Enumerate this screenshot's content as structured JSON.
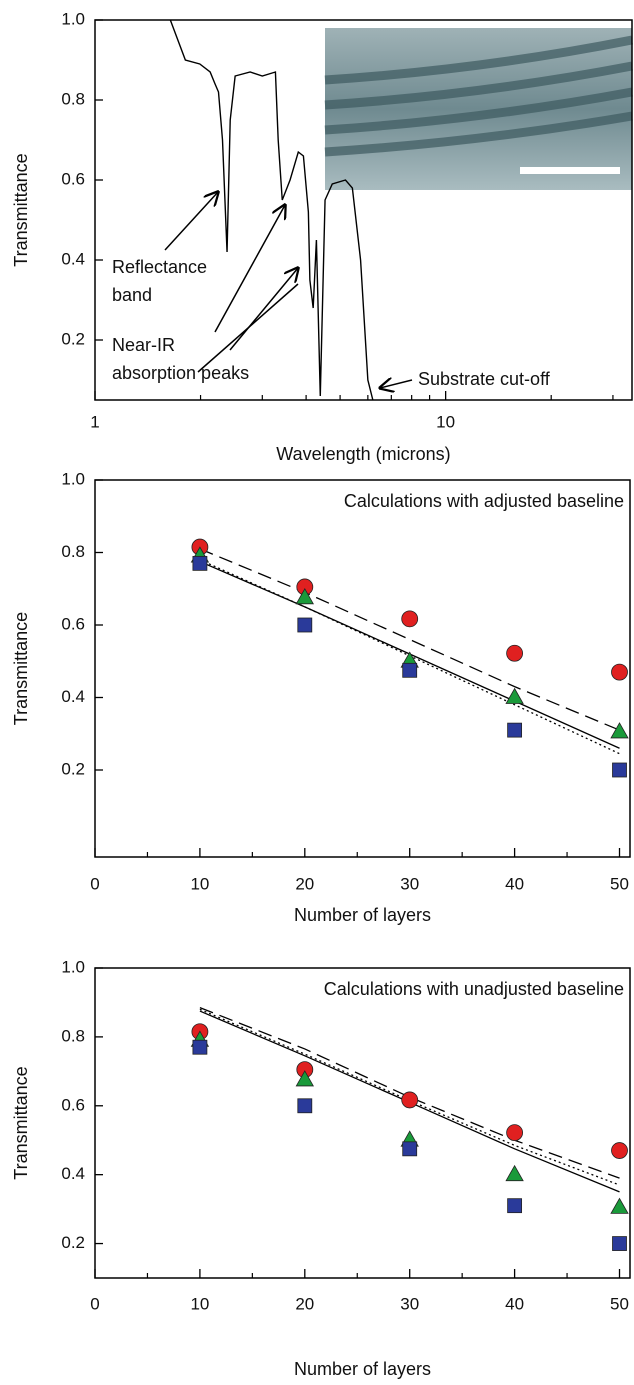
{
  "chart_data": [
    {
      "type": "line",
      "xscale": "log",
      "xlabel": "Wavelength (microns)",
      "ylabel": "Transmittance",
      "xlim": [
        1,
        34
      ],
      "ylim": [
        0.05,
        1.0
      ],
      "xticks": [
        1,
        10
      ],
      "xminorticks": [
        2,
        3,
        4,
        5,
        6,
        7,
        8,
        9,
        20,
        30
      ],
      "yticks": [
        0.2,
        0.4,
        0.6,
        0.8,
        {
          "value": 1.0,
          "label": "1.0"
        }
      ],
      "annotations": [
        "Reflectance",
        "band",
        "Near-IR",
        "absorption peaks",
        "Substrate cut-off"
      ],
      "series": [
        {
          "color": "#000000",
          "x": [
            1.64,
            1.81,
            1.99,
            2.13,
            2.2,
            2.25,
            2.31,
            2.38,
            2.43,
            2.51,
            2.77,
            3.0,
            3.27,
            3.33,
            3.42,
            3.6,
            3.8,
            3.93,
            4.06,
            4.1,
            4.19,
            4.28,
            4.39,
            4.53,
            4.75,
            5.18,
            5.42,
            5.72,
            6.0,
            6.2
          ],
          "values": [
            1.0,
            0.9,
            0.89,
            0.87,
            0.84,
            0.82,
            0.7,
            0.42,
            0.75,
            0.86,
            0.87,
            0.86,
            0.87,
            0.7,
            0.55,
            0.6,
            0.67,
            0.66,
            0.52,
            0.35,
            0.28,
            0.45,
            0.06,
            0.55,
            0.59,
            0.6,
            0.58,
            0.4,
            0.1,
            0.05
          ]
        }
      ]
    },
    {
      "type": "scatter",
      "annotation": "Calculations with adjusted baseline",
      "xlabel": "Number of layers",
      "ylabel": "Transmittance",
      "xlim": [
        0,
        51
      ],
      "ylim": [
        -0.04,
        1.0
      ],
      "xticks": [
        0,
        10,
        20,
        30,
        40,
        50
      ],
      "xminorticks": [
        5,
        15,
        25,
        35,
        45
      ],
      "yticks": [
        0.2,
        0.4,
        0.6,
        0.8,
        {
          "value": 1.0,
          "label": "1.0"
        }
      ],
      "x": [
        10,
        20,
        30,
        40,
        50
      ],
      "series": [
        {
          "color": "#e02020",
          "marker": "circle",
          "values": [
            0.815,
            0.705,
            0.617,
            0.522,
            0.47
          ]
        },
        {
          "color": "#1a9a3a",
          "marker": "triangle",
          "values": [
            0.79,
            0.675,
            0.5,
            0.4,
            0.305
          ]
        },
        {
          "color": "#2a3a9a",
          "marker": "square",
          "values": [
            0.77,
            0.6,
            0.475,
            0.31,
            0.2
          ]
        },
        {
          "color": "#000000",
          "dash": "dash",
          "values": [
            0.81,
            0.69,
            0.56,
            0.43,
            0.31
          ]
        },
        {
          "color": "#000000",
          "dash": "solid",
          "values": [
            0.775,
            0.65,
            0.52,
            0.39,
            0.26
          ]
        },
        {
          "color": "#000000",
          "dash": "dot",
          "values": [
            0.78,
            0.65,
            0.515,
            0.38,
            0.245
          ]
        }
      ]
    },
    {
      "type": "scatter",
      "annotation": "Calculations with unadjusted baseline",
      "xlabel": "Number of layers",
      "ylabel": "Transmittance",
      "xlim": [
        0,
        51
      ],
      "ylim": [
        0.1,
        1.0
      ],
      "xticks": [
        0,
        10,
        20,
        30,
        40,
        50
      ],
      "xminorticks": [
        5,
        15,
        25,
        35,
        45
      ],
      "yticks": [
        0.2,
        0.4,
        0.6,
        0.8,
        {
          "value": 1.0,
          "label": "1.0"
        }
      ],
      "x": [
        10,
        20,
        30,
        40,
        50
      ],
      "series": [
        {
          "color": "#e02020",
          "marker": "circle",
          "values": [
            0.815,
            0.705,
            0.617,
            0.522,
            0.47
          ]
        },
        {
          "color": "#1a9a3a",
          "marker": "triangle",
          "values": [
            0.79,
            0.675,
            0.5,
            0.4,
            0.305
          ]
        },
        {
          "color": "#2a3a9a",
          "marker": "square",
          "values": [
            0.77,
            0.6,
            0.475,
            0.31,
            0.2
          ]
        },
        {
          "color": "#000000",
          "dash": "dash",
          "values": [
            0.885,
            0.765,
            0.625,
            0.5,
            0.39
          ]
        },
        {
          "color": "#000000",
          "dash": "solid",
          "values": [
            0.875,
            0.745,
            0.61,
            0.475,
            0.35
          ]
        },
        {
          "color": "#000000",
          "dash": "dot",
          "values": [
            0.88,
            0.75,
            0.615,
            0.485,
            0.37
          ]
        }
      ]
    }
  ]
}
